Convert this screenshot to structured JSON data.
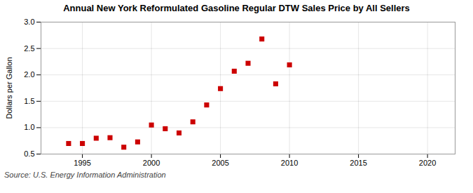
{
  "chart_data": {
    "type": "scatter",
    "title": "Annual New York Reformulated Gasoline Regular DTW Sales Price by All Sellers",
    "ylabel": "Dollars per Gallon",
    "source": "Source: U.S. Energy Information Administration",
    "x": [
      1994,
      1995,
      1996,
      1997,
      1998,
      1999,
      2000,
      2001,
      2002,
      2003,
      2004,
      2005,
      2006,
      2007,
      2008,
      2009,
      2010
    ],
    "values": [
      0.7,
      0.7,
      0.8,
      0.81,
      0.63,
      0.73,
      1.05,
      0.98,
      0.9,
      1.11,
      1.43,
      1.74,
      2.07,
      2.22,
      2.68,
      1.83,
      2.19
    ],
    "xlim": [
      1992,
      2022
    ],
    "ylim": [
      0.5,
      3.0
    ],
    "xticks": [
      1995,
      2000,
      2005,
      2010,
      2015,
      2020
    ],
    "yticks": [
      0.5,
      {
        "value": 1.0,
        "label": "1.0"
      },
      1.5,
      {
        "value": 2.0,
        "label": "2.0"
      },
      2.5,
      {
        "value": 3.0,
        "label": "3.0"
      }
    ],
    "color": "#cc0000",
    "marker": "square",
    "grid": true
  }
}
